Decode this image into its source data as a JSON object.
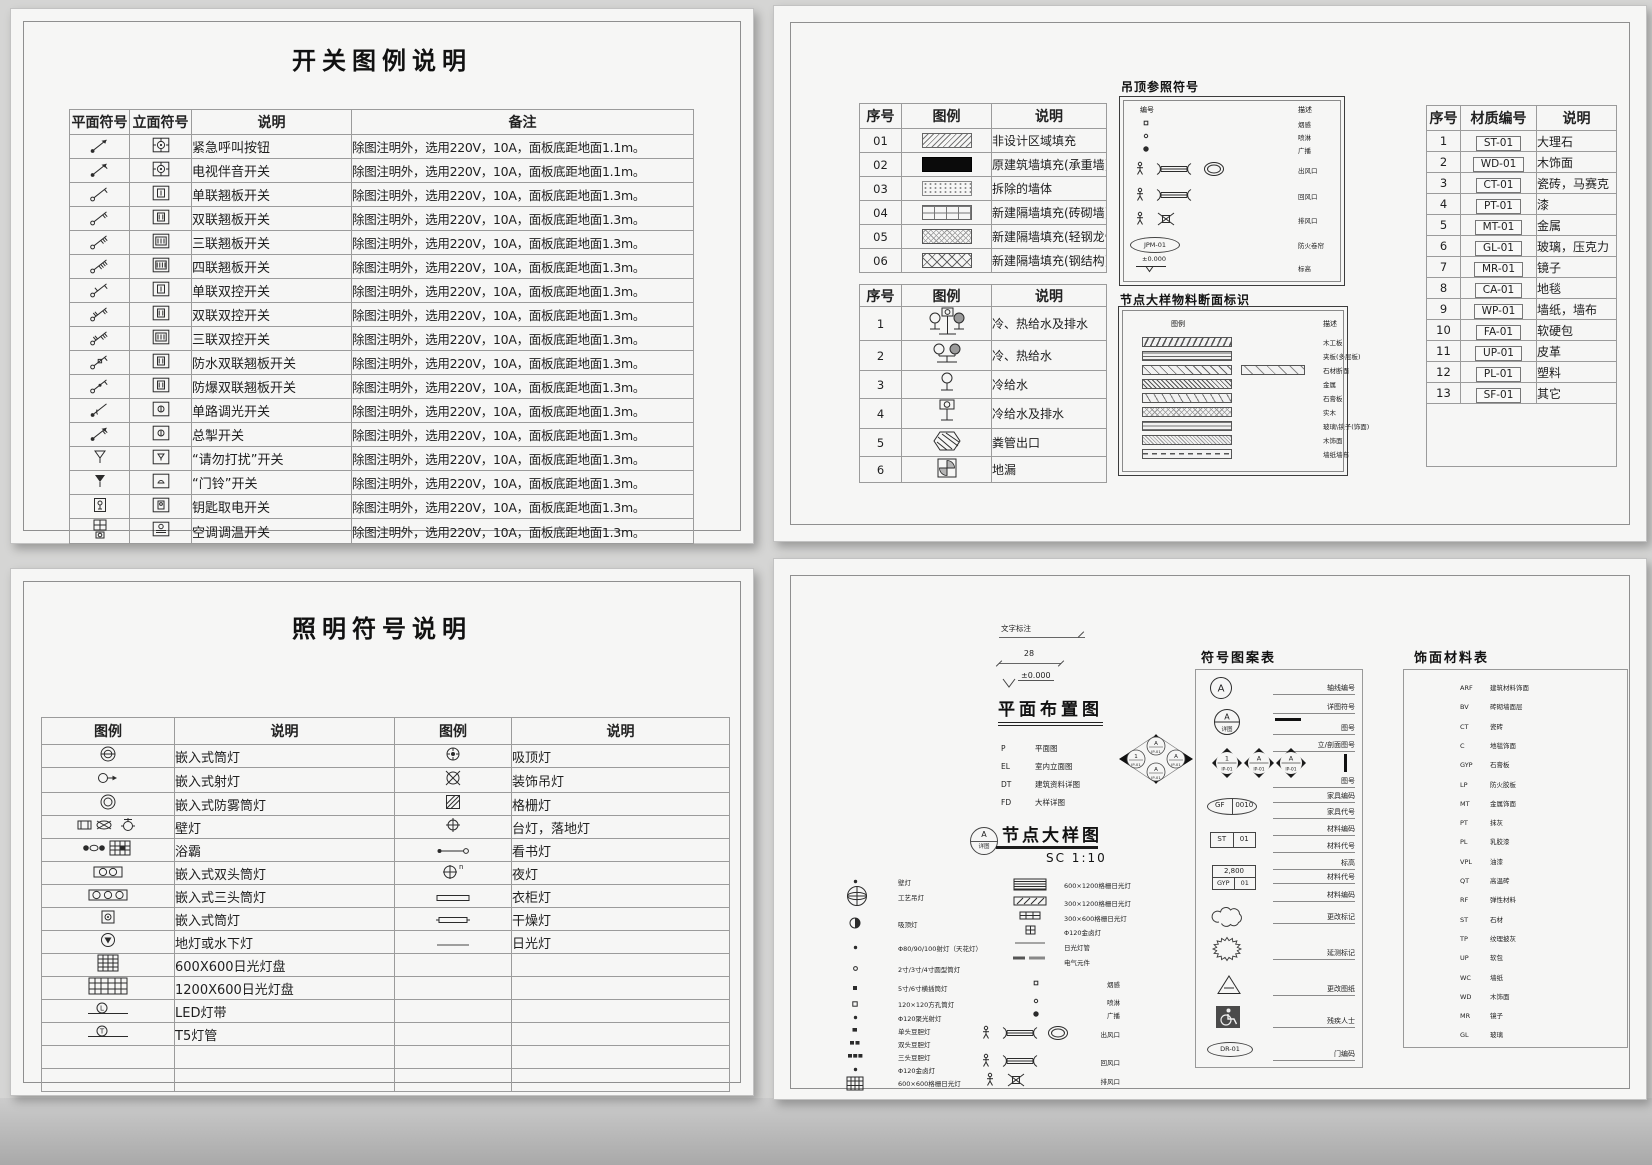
{
  "page": {
    "titles": {
      "switch": "开关图例说明",
      "lighting": "照明符号说明"
    }
  },
  "switch_legend": {
    "headers": [
      "平面符号",
      "立面符号",
      "说明",
      "备注"
    ],
    "rows": [
      {
        "plan_icon": "sw-call",
        "elev_icon": "el-round",
        "desc": "紧急呼叫按钮",
        "remark": "除图注明外，选用220V，10A，面板底距地面1.1m。"
      },
      {
        "plan_icon": "sw-tv",
        "elev_icon": "el-round",
        "desc": "电视伴音开关",
        "remark": "除图注明外，选用220V，10A，面板底距地面1.1m。"
      },
      {
        "plan_icon": "sw-1",
        "elev_icon": "el-g1",
        "desc": "单联翘板开关",
        "remark": "除图注明外，选用220V，10A，面板底距地面1.3m。"
      },
      {
        "plan_icon": "sw-2",
        "elev_icon": "el-g2",
        "desc": "双联翘板开关",
        "remark": "除图注明外，选用220V，10A，面板底距地面1.3m。"
      },
      {
        "plan_icon": "sw-3",
        "elev_icon": "el-g3",
        "desc": "三联翘板开关",
        "remark": "除图注明外，选用220V，10A，面板底距地面1.3m。"
      },
      {
        "plan_icon": "sw-4",
        "elev_icon": "el-g4",
        "desc": "四联翘板开关",
        "remark": "除图注明外，选用220V，10A，面板底距地面1.3m。"
      },
      {
        "plan_icon": "sw-1w",
        "elev_icon": "el-g1",
        "desc": "单联双控开关",
        "remark": "除图注明外，选用220V，10A，面板底距地面1.3m。"
      },
      {
        "plan_icon": "sw-2w",
        "elev_icon": "el-g2",
        "desc": "双联双控开关",
        "remark": "除图注明外，选用220V，10A，面板底距地面1.3m。"
      },
      {
        "plan_icon": "sw-3w",
        "elev_icon": "el-g3",
        "desc": "三联双控开关",
        "remark": "除图注明外，选用220V，10A，面板底距地面1.3m。"
      },
      {
        "plan_icon": "sw-wp",
        "elev_icon": "el-g2",
        "desc": "防水双联翘板开关",
        "remark": "除图注明外，选用220V，10A，面板底距地面1.3m。"
      },
      {
        "plan_icon": "sw-ex",
        "elev_icon": "el-g2",
        "desc": "防爆双联翘板开关",
        "remark": "除图注明外，选用220V，10A，面板底距地面1.3m。"
      },
      {
        "plan_icon": "sw-dim",
        "elev_icon": "el-dim",
        "desc": "单路调光开关",
        "remark": "除图注明外，选用220V，10A，面板底距地面1.3m。"
      },
      {
        "plan_icon": "sw-master",
        "elev_icon": "el-dim",
        "desc": "总掣开关",
        "remark": "除图注明外，选用220V，10A，面板底距地面1.3m。"
      },
      {
        "plan_icon": "sym-dnd",
        "elev_icon": "el-dnd",
        "desc": "“请勿打扰”开关",
        "remark": "除图注明外，选用220V，10A，面板底距地面1.3m。"
      },
      {
        "plan_icon": "sym-bell",
        "elev_icon": "el-bell",
        "desc": "“门铃”开关",
        "remark": "除图注明外，选用220V，10A，面板底距地面1.3m。"
      },
      {
        "plan_icon": "sym-key",
        "elev_icon": "el-key",
        "desc": "钥匙取电开关",
        "remark": "除图注明外，选用220V，10A，面板底距地面1.3m。"
      },
      {
        "plan_icon": "sym-ac",
        "elev_icon": "el-ac",
        "desc": "空调调温开关",
        "remark": "除图注明外，选用220V，10A，面板底距地面1.3m。"
      }
    ]
  },
  "lighting": {
    "headers": [
      "图例",
      "说明",
      "图例",
      "说明"
    ],
    "rows": [
      {
        "l_icon": "li-dl",
        "l": "嵌入式筒灯",
        "r_icon": "ri-ceil",
        "r": "吸顶灯"
      },
      {
        "l_icon": "li-spot",
        "l": "嵌入式射灯",
        "r_icon": "ri-pend",
        "r": "装饰吊灯"
      },
      {
        "l_icon": "li-fog",
        "l": "嵌入式防雾筒灯",
        "r_icon": "ri-grille",
        "r": "格栅灯"
      },
      {
        "l_icon": "li-wall",
        "l": "壁灯",
        "r_icon": "ri-table",
        "r": "台灯，落地灯"
      },
      {
        "l_icon": "li-yuba",
        "l": "浴霸",
        "r_icon": "ri-read",
        "r": "看书灯"
      },
      {
        "l_icon": "li-2head",
        "l": "嵌入式双头筒灯",
        "r_icon": "ri-night",
        "r": "夜灯"
      },
      {
        "l_icon": "li-3head",
        "l": "嵌入式三头筒灯",
        "r_icon": "ri-ward",
        "r": "衣柜灯"
      },
      {
        "l_icon": "li-sqdl",
        "l": "嵌入式筒灯",
        "r_icon": "ri-dry",
        "r": "干燥灯"
      },
      {
        "l_icon": "li-ground",
        "l": "地灯或水下灯",
        "r_icon": "ri-fluor",
        "r": "日光灯"
      },
      {
        "l_icon": "li-grid600",
        "l": "600X600日光灯盘",
        "r_icon": "",
        "r": ""
      },
      {
        "l_icon": "li-grid1200",
        "l": "1200X600日光灯盘",
        "r_icon": "",
        "r": ""
      },
      {
        "l_icon": "li-led",
        "l": "LED灯带",
        "r_icon": "",
        "r": ""
      },
      {
        "l_icon": "li-t5",
        "l": "T5灯管",
        "r_icon": "",
        "r": ""
      },
      {
        "l_icon": "",
        "l": "",
        "r_icon": "",
        "r": ""
      },
      {
        "l_icon": "",
        "l": "",
        "r_icon": "",
        "r": ""
      }
    ]
  },
  "fill_table": {
    "headers": [
      "序号",
      "图例",
      "说明"
    ],
    "rows": [
      {
        "no": "01",
        "swatch": "f-hatch",
        "desc": "非设计区域填充"
      },
      {
        "no": "02",
        "swatch": "f-solid",
        "desc": "原建筑墙填充(承重墙)"
      },
      {
        "no": "03",
        "swatch": "f-dots",
        "desc": "拆除的墙体"
      },
      {
        "no": "04",
        "swatch": "f-brick",
        "desc": "新建隔墙填充(砖砌墙)"
      },
      {
        "no": "05",
        "swatch": "f-steel",
        "desc": "新建隔墙填充(轻钢龙骨)"
      },
      {
        "no": "06",
        "swatch": "f-xhatch",
        "desc": "新建隔墙填充(钢结构)"
      }
    ]
  },
  "plumb_table": {
    "headers": [
      "序号",
      "图例",
      "说明"
    ],
    "rows": [
      {
        "no": "1",
        "icon": "pw-chd",
        "desc": "冷、热给水及排水"
      },
      {
        "no": "2",
        "icon": "pw-ch",
        "desc": "冷、热给水"
      },
      {
        "no": "3",
        "icon": "pw-c",
        "desc": "冷给水"
      },
      {
        "no": "4",
        "icon": "pw-cd",
        "desc": "冷给水及排水"
      },
      {
        "no": "5",
        "icon": "pw-soil",
        "desc": "粪管出口"
      },
      {
        "no": "6",
        "icon": "pw-drain",
        "desc": "地漏"
      }
    ]
  },
  "ceiling_box": {
    "title": "吊顶参照符号",
    "col1": "编号",
    "col2": "描述",
    "items": [
      {
        "icon": "c-smoke",
        "label": "烟感"
      },
      {
        "icon": "c-sprk",
        "label": "喷淋"
      },
      {
        "icon": "c-spk",
        "label": "广播"
      },
      {
        "icon": "c-supply",
        "label": "出风口"
      },
      {
        "icon": "c-return",
        "label": "回风口"
      },
      {
        "icon": "c-exh",
        "label": "排风口"
      },
      {
        "icon": "c-fire",
        "label": "防火卷帘",
        "tag": "JPM-01"
      },
      {
        "icon": "c-level",
        "label": "标高",
        "tag": "±0.000"
      }
    ]
  },
  "section_box": {
    "title": "节点大样物料断面标识",
    "col1": "图例",
    "col2": "描述",
    "items": [
      {
        "bar": "bar-zig",
        "label": "木工板"
      },
      {
        "bar": "bar-ply",
        "label": "夹板(多层板)"
      },
      {
        "bar": "bar-stone",
        "label": "石材断面",
        "extra": "bar-stone2"
      },
      {
        "bar": "bar-metal",
        "label": "金属"
      },
      {
        "bar": "bar-gyp",
        "label": "石膏板"
      },
      {
        "bar": "bar-wood",
        "label": "实木"
      },
      {
        "bar": "bar-glass",
        "label": "玻璃\\镜子(饰面)"
      },
      {
        "bar": "bar-veneer",
        "label": "木饰面"
      },
      {
        "bar": "bar-paper",
        "label": "墙纸墙布"
      }
    ]
  },
  "mat_table": {
    "headers": [
      "序号",
      "材质编号",
      "说明"
    ],
    "rows": [
      {
        "no": "1",
        "code": "ST-01",
        "desc": "大理石"
      },
      {
        "no": "2",
        "code": "WD-01",
        "desc": "木饰面"
      },
      {
        "no": "3",
        "code": "CT-01",
        "desc": "瓷砖，马赛克"
      },
      {
        "no": "4",
        "code": "PT-01",
        "desc": "漆"
      },
      {
        "no": "5",
        "code": "MT-01",
        "desc": "金属"
      },
      {
        "no": "6",
        "code": "GL-01",
        "desc": "玻璃，压克力"
      },
      {
        "no": "7",
        "code": "MR-01",
        "desc": "镜子"
      },
      {
        "no": "8",
        "code": "CA-01",
        "desc": "地毯"
      },
      {
        "no": "9",
        "code": "WP-01",
        "desc": "墙纸，墙布"
      },
      {
        "no": "10",
        "code": "FA-01",
        "desc": "软硬包"
      },
      {
        "no": "11",
        "code": "UP-01",
        "desc": "皮革"
      },
      {
        "no": "12",
        "code": "PL-01",
        "desc": "塑料"
      },
      {
        "no": "13",
        "code": "SF-01",
        "desc": "其它"
      }
    ]
  },
  "plan_panel": {
    "text_note": "文字标注",
    "dim": "28",
    "level": "±0.000",
    "h1": "平面布置图",
    "codes": [
      {
        "code": "P",
        "desc": "平面图"
      },
      {
        "code": "EL",
        "desc": "室内立面图"
      },
      {
        "code": "DT",
        "desc": "建筑资料详图"
      },
      {
        "code": "FD",
        "desc": "大样详图"
      }
    ],
    "h2": "节点大样图",
    "scale": "SC 1:10",
    "badge_top": "A",
    "badge_bottom": "详图",
    "lamps_left": [
      {
        "icon": "d-dot",
        "label": "壁灯"
      },
      {
        "icon": "d-chand",
        "label": "工艺吊灯"
      },
      {
        "icon": "d-half",
        "label": "吸顶灯"
      },
      {
        "icon": "d-dot",
        "label": "Φ80/90/100射灯（天花灯）"
      },
      {
        "icon": "d-dot2",
        "label": "2寸/3寸/4寸圆型筒灯"
      },
      {
        "icon": "d-sq",
        "label": "5寸/6寸横插筒灯"
      },
      {
        "icon": "d-sq2",
        "label": "120×120方孔筒灯"
      },
      {
        "icon": "d-dot",
        "label": "Φ120聚光射灯"
      },
      {
        "icon": "d-bean1",
        "label": "单头豆胆灯"
      },
      {
        "icon": "d-bean2",
        "label": "双头豆胆灯"
      },
      {
        "icon": "d-bean3",
        "label": "三头豆胆灯"
      },
      {
        "icon": "d-dot",
        "label": "Φ120金卤灯"
      },
      {
        "icon": "d-grid",
        "label": "600×600格栅日光灯"
      }
    ],
    "lamps_right": [
      {
        "icon": "g-1200",
        "label": "600×1200格栅日光灯"
      },
      {
        "icon": "g-1200h",
        "label": "300×1200格栅日光灯"
      },
      {
        "icon": "g-600",
        "label": "300×600格栅日光灯"
      },
      {
        "icon": "g-mh",
        "label": "Φ120金卤灯"
      },
      {
        "icon": "g-line",
        "label": "日光灯管"
      },
      {
        "icon": "g-elec",
        "label": "电气元件"
      }
    ],
    "hvac": [
      {
        "icon": "c-smoke",
        "label": "烟感"
      },
      {
        "icon": "c-sprk",
        "label": "喷淋"
      },
      {
        "icon": "c-spk",
        "label": "广播"
      },
      {
        "icon": "c-supply",
        "label": "出风口"
      },
      {
        "icon": "c-return",
        "label": "回风口"
      },
      {
        "icon": "c-exh",
        "label": "排风口"
      }
    ]
  },
  "symbol_table": {
    "title": "符号图案表",
    "labels": [
      "轴线编号",
      "详图符号",
      "图号",
      "立/剖面图号",
      "图号",
      "家具编码",
      "家具代号",
      "材料编码",
      "材料代号",
      "标高",
      "材料代号",
      "材料编码",
      "更改标记",
      "延测标记",
      "更改图纸",
      "残疾人士",
      "门编码"
    ],
    "values": {
      "axis": "A",
      "detail_top": "A",
      "detail_bottom": "详图",
      "dia1_top": "1",
      "dia_top": "A",
      "dia_bottom": "IP-01",
      "furn": [
        "GF",
        "0010"
      ],
      "mat": [
        "ST",
        "01"
      ],
      "elev_top": "2,800",
      "elev": [
        "GYP",
        "01"
      ],
      "door": "DR-01"
    }
  },
  "finish_table": {
    "title": "饰面材料表",
    "rows": [
      {
        "code": "ARF",
        "desc": "建筑材料饰面"
      },
      {
        "code": "BV",
        "desc": "砖砌墙面层"
      },
      {
        "code": "CT",
        "desc": "瓷砖"
      },
      {
        "code": "C",
        "desc": "地毯饰面"
      },
      {
        "code": "GYP",
        "desc": "石膏板"
      },
      {
        "code": "LP",
        "desc": "防火胶板"
      },
      {
        "code": "MT",
        "desc": "金属饰面"
      },
      {
        "code": "PT",
        "desc": "抹灰"
      },
      {
        "code": "PL",
        "desc": "乳胶漆"
      },
      {
        "code": "VPL",
        "desc": "油漆"
      },
      {
        "code": "QT",
        "desc": "高温砖"
      },
      {
        "code": "RF",
        "desc": "弹性材料"
      },
      {
        "code": "ST",
        "desc": "石材"
      },
      {
        "code": "TP",
        "desc": "纹理披灰"
      },
      {
        "code": "UP",
        "desc": "软包"
      },
      {
        "code": "WC",
        "desc": "墙纸"
      },
      {
        "code": "WD",
        "desc": "木饰面"
      },
      {
        "code": "MR",
        "desc": "镜子"
      },
      {
        "code": "GL",
        "desc": "玻璃"
      }
    ]
  }
}
